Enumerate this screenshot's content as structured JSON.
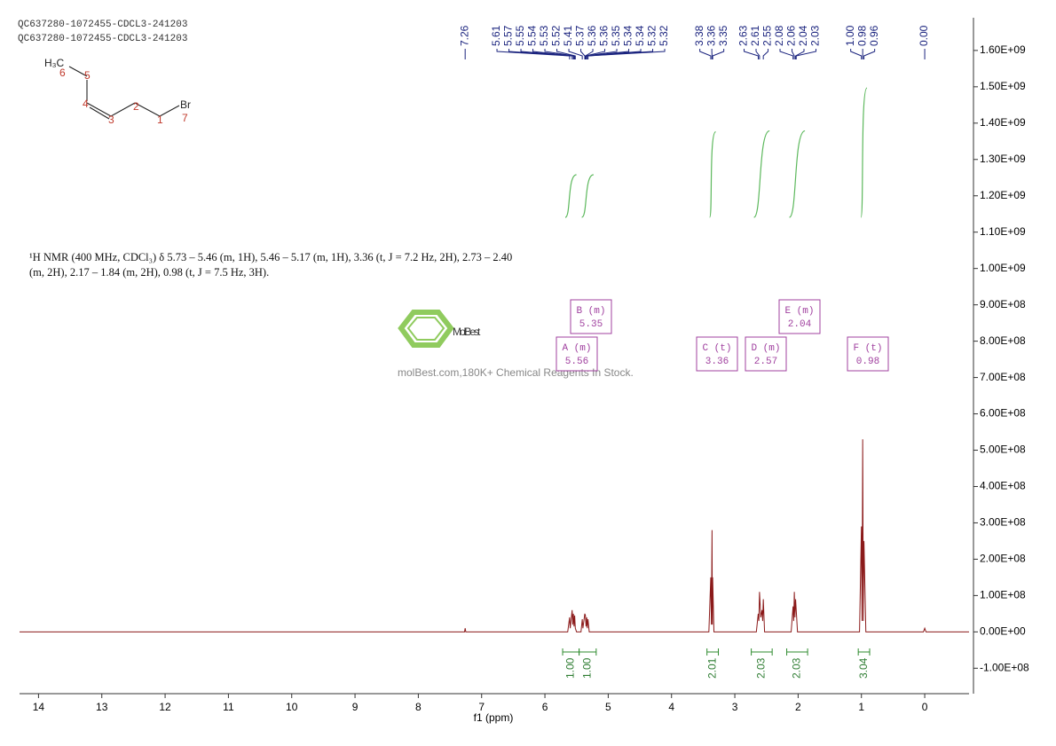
{
  "header": {
    "lines": [
      "QC637280-1072455-CDCL3-241203",
      "QC637280-1072455-CDCL3-241203"
    ]
  },
  "structure": {
    "atoms": [
      "H₃C",
      "Br"
    ],
    "numbers": [
      "6",
      "5",
      "4",
      "3",
      "2",
      "1",
      "7"
    ]
  },
  "watermark": {
    "brand": "MolBest",
    "tagline": "molBest.com,180K+ Chemical Reagents In Stock."
  },
  "chart_data": {
    "type": "line",
    "description": "¹H NMR (400 MHz, CDCl₃) δ 5.73 – 5.46 (m, 1H), 5.46 – 5.17 (m, 1H), 3.36 (t, J = 7.2 Hz, 2H), 2.73 – 2.40 (m, 2H), 2.17 – 1.84 (m, 2H), 0.98 (t, J = 7.5 Hz, 3H).",
    "x_label": "f1 (ppm)",
    "xlim": [
      14.3,
      -0.7
    ],
    "xticks": [
      14,
      13,
      12,
      11,
      10,
      9,
      8,
      7,
      6,
      5,
      4,
      3,
      2,
      1,
      0
    ],
    "ylim": [
      -170000000,
      1690000000
    ],
    "yticks": [
      {
        "value": -100000000,
        "label": "-1.00E+08"
      },
      {
        "value": 0,
        "label": "0.00E+00"
      },
      {
        "value": 100000000,
        "label": "1.00E+08"
      },
      {
        "value": 200000000,
        "label": "2.00E+08"
      },
      {
        "value": 300000000,
        "label": "3.00E+08"
      },
      {
        "value": 400000000,
        "label": "4.00E+08"
      },
      {
        "value": 500000000,
        "label": "5.00E+08"
      },
      {
        "value": 600000000,
        "label": "6.00E+08"
      },
      {
        "value": 700000000,
        "label": "7.00E+08"
      },
      {
        "value": 800000000,
        "label": "8.00E+08"
      },
      {
        "value": 900000000,
        "label": "9.00E+08"
      },
      {
        "value": 1000000000,
        "label": "1.00E+09"
      },
      {
        "value": 1100000000,
        "label": "1.10E+09"
      },
      {
        "value": 1200000000,
        "label": "1.20E+09"
      },
      {
        "value": 1300000000,
        "label": "1.30E+09"
      },
      {
        "value": 1400000000,
        "label": "1.40E+09"
      },
      {
        "value": 1500000000,
        "label": "1.50E+09"
      },
      {
        "value": 1600000000,
        "label": "1.60E+09"
      }
    ],
    "color": "#8b1a1a",
    "x": [
      14.3,
      7.27,
      7.26,
      7.25,
      5.64,
      5.61,
      5.6,
      5.57,
      5.56,
      5.55,
      5.54,
      5.53,
      5.52,
      5.5,
      5.43,
      5.41,
      5.4,
      5.37,
      5.36,
      5.35,
      5.34,
      5.33,
      5.32,
      5.3,
      3.41,
      3.38,
      3.37,
      3.36,
      3.355,
      3.35,
      3.33,
      2.66,
      2.63,
      2.62,
      2.61,
      2.59,
      2.57,
      2.56,
      2.55,
      2.53,
      2.11,
      2.08,
      2.07,
      2.06,
      2.05,
      2.04,
      2.03,
      2.01,
      1.03,
      1.0,
      0.99,
      0.98,
      0.97,
      0.96,
      0.93,
      0.02,
      0.0,
      -0.02,
      -0.7
    ],
    "values": [
      0,
      0,
      10000000,
      0,
      0,
      40000000,
      10000000,
      60000000,
      20000000,
      50000000,
      15000000,
      45000000,
      10000000,
      0,
      0,
      35000000,
      10000000,
      50000000,
      45000000,
      15000000,
      40000000,
      10000000,
      35000000,
      0,
      0,
      150000000,
      20000000,
      280000000,
      20000000,
      150000000,
      0,
      0,
      50000000,
      30000000,
      110000000,
      40000000,
      60000000,
      30000000,
      90000000,
      0,
      0,
      70000000,
      30000000,
      110000000,
      40000000,
      90000000,
      60000000,
      0,
      0,
      290000000,
      30000000,
      530000000,
      30000000,
      250000000,
      0,
      0,
      10000000,
      0,
      0
    ],
    "peaks": [
      7.26,
      5.61,
      5.57,
      5.55,
      5.54,
      5.53,
      5.52,
      5.41,
      5.37,
      5.36,
      5.36,
      5.35,
      5.34,
      5.34,
      5.32,
      5.32,
      3.38,
      3.36,
      3.35,
      2.63,
      2.61,
      2.55,
      2.08,
      2.06,
      2.04,
      2.03,
      {
        "value": 1,
        "label": "1.00"
      },
      0.98,
      0.96,
      {
        "value": 0,
        "label": "0.00"
      }
    ],
    "integrals": {
      "values": [
        1,
        1,
        2.01,
        2.03,
        2.03,
        3.04
      ],
      "value_labels": [
        "1.00",
        "1.00",
        "2.01",
        "2.03",
        "2.03",
        "3.04"
      ],
      "ranges": [
        [
          5.72,
          5.46
        ],
        [
          5.46,
          5.19
        ],
        [
          3.44,
          3.26
        ],
        [
          2.74,
          2.41
        ],
        [
          2.18,
          1.85
        ],
        [
          1.05,
          0.87
        ]
      ]
    },
    "multiplets": [
      {
        "name": "A (m)",
        "shift": 5.56
      },
      {
        "name": "B (m)",
        "shift": 5.35
      },
      {
        "name": "C (t)",
        "shift": 3.36
      },
      {
        "name": "D (m)",
        "shift": 2.57
      },
      {
        "name": "E (m)",
        "shift": 2.04
      },
      {
        "name": "F (t)",
        "shift": 0.98
      }
    ]
  }
}
